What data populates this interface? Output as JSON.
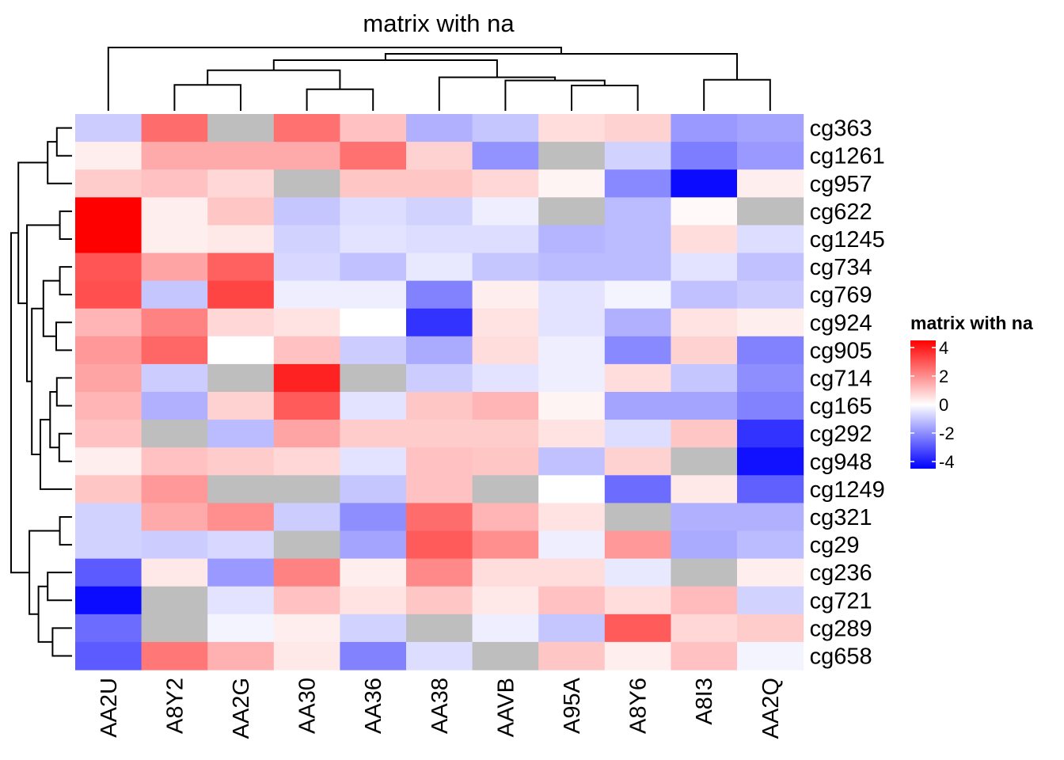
{
  "chart_data": {
    "type": "heatmap",
    "title": "matrix with na",
    "columns": [
      "AA2U",
      "A8Y2",
      "AA2G",
      "AA30",
      "AA36",
      "AA38",
      "AAVB",
      "A95A",
      "A8Y6",
      "A8I3",
      "AA2Q"
    ],
    "rows": [
      "cg363",
      "cg1261",
      "cg957",
      "cg622",
      "cg1245",
      "cg734",
      "cg769",
      "cg924",
      "cg905",
      "cg714",
      "cg165",
      "cg292",
      "cg948",
      "cg1249",
      "cg321",
      "cg29",
      "cg236",
      "cg721",
      "cg289",
      "cg658"
    ],
    "values": [
      [
        -0.9,
        2.6,
        null,
        2.5,
        1.1,
        -1.4,
        -1.0,
        0.6,
        0.8,
        -1.8,
        -1.6
      ],
      [
        0.3,
        1.5,
        1.5,
        1.5,
        2.5,
        0.8,
        -1.9,
        null,
        -0.8,
        -2.3,
        -1.8
      ],
      [
        0.9,
        1.1,
        0.7,
        null,
        1.0,
        1.0,
        0.7,
        0.2,
        -2.1,
        -4.3,
        0.3
      ],
      [
        4.6,
        0.3,
        1.0,
        -1.0,
        -0.6,
        -0.8,
        -0.3,
        null,
        -1.2,
        0.1,
        null
      ],
      [
        4.6,
        0.3,
        0.4,
        -0.8,
        -0.5,
        -0.6,
        -0.6,
        -1.3,
        -1.2,
        0.6,
        -0.6
      ],
      [
        3.0,
        1.6,
        2.8,
        -0.7,
        -1.1,
        -0.4,
        -1.0,
        -1.2,
        -1.2,
        -0.5,
        -1.1
      ],
      [
        3.1,
        -1.0,
        3.3,
        -0.3,
        -0.3,
        -2.2,
        0.3,
        -0.5,
        -0.2,
        -1.1,
        -0.9
      ],
      [
        1.3,
        2.2,
        0.7,
        0.5,
        0.0,
        -3.6,
        0.5,
        -0.5,
        -1.4,
        0.5,
        0.3
      ],
      [
        1.8,
        2.7,
        0.0,
        1.1,
        -0.9,
        -1.5,
        0.6,
        -0.3,
        -2.1,
        0.8,
        -2.2
      ],
      [
        1.6,
        -0.9,
        null,
        3.9,
        null,
        -0.9,
        -0.5,
        -0.3,
        0.6,
        -1.0,
        -2.0
      ],
      [
        1.3,
        -1.4,
        0.8,
        2.9,
        -0.5,
        1.0,
        1.3,
        0.2,
        -1.6,
        -1.6,
        -2.2
      ],
      [
        1.1,
        null,
        -1.2,
        1.6,
        0.9,
        0.9,
        0.9,
        0.5,
        -0.6,
        1.0,
        -3.6
      ],
      [
        0.3,
        1.1,
        0.9,
        0.7,
        -0.5,
        1.1,
        1.0,
        -1.1,
        0.8,
        null,
        -4.2
      ],
      [
        1.0,
        1.8,
        null,
        null,
        -1.0,
        1.1,
        null,
        0.0,
        -2.6,
        0.4,
        -2.8
      ],
      [
        -0.8,
        1.5,
        2.0,
        -0.9,
        -2.0,
        2.6,
        1.3,
        0.5,
        null,
        -1.4,
        -1.4
      ],
      [
        -0.8,
        -0.9,
        -0.7,
        null,
        -1.6,
        2.9,
        2.0,
        -0.3,
        1.8,
        -1.5,
        -1.2
      ],
      [
        -2.9,
        0.4,
        -1.8,
        2.2,
        0.3,
        2.1,
        0.6,
        0.6,
        -0.4,
        null,
        0.3
      ],
      [
        -4.3,
        null,
        -0.5,
        1.1,
        0.5,
        1.0,
        0.4,
        1.1,
        0.6,
        1.2,
        -0.8
      ],
      [
        -2.6,
        null,
        -0.2,
        0.3,
        -0.8,
        null,
        -0.3,
        -1.0,
        2.9,
        0.7,
        0.9
      ],
      [
        -2.9,
        2.4,
        1.4,
        0.4,
        -2.2,
        -0.6,
        null,
        1.0,
        0.3,
        1.1,
        -0.2
      ]
    ],
    "na_color": "#bebebe",
    "color_scale": [
      {
        "value": -4.5,
        "color": "#0000ff"
      },
      {
        "value": 0,
        "color": "#ffffff"
      },
      {
        "value": 4.5,
        "color": "#ff0000"
      }
    ],
    "legend": {
      "title": "matrix with na",
      "ticks": [
        4,
        2,
        0,
        -2,
        -4
      ],
      "position": "right"
    },
    "row_dendrogram": true,
    "column_dendrogram": true
  }
}
